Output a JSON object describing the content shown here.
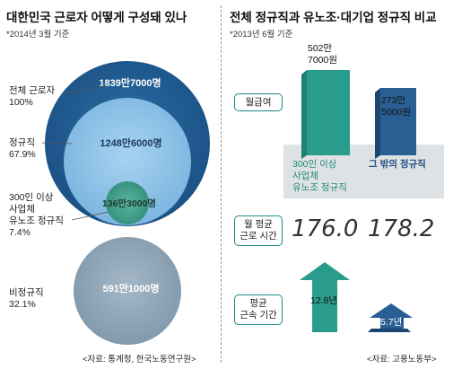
{
  "left": {
    "title": "대한민국 근로자 어떻게 구성돼 있나",
    "note": "*2014년 3월 기준",
    "source": "<자료: 통계청, 한국노동연구원>",
    "items": [
      {
        "label_lines": [
          "전체 근로자"
        ],
        "pct": "100%",
        "value_text": "1839만7000명"
      },
      {
        "label_lines": [
          "정규직"
        ],
        "pct": "67.9%",
        "value_text": "1248만6000명"
      },
      {
        "label_lines": [
          "300인 이상",
          "사업체",
          "유노조 정규직"
        ],
        "pct": "7.4%",
        "value_text": "136만3000명"
      },
      {
        "label_lines": [
          "비정규직"
        ],
        "pct": "32.1%",
        "value_text": "591만1000명"
      }
    ]
  },
  "right": {
    "title": "전체 정규직과 유노조·대기업 정규직 비교",
    "note": "*2013년 6월 기준",
    "source": "<자료: 고용노동부>",
    "metrics": [
      {
        "label_lines": [
          "월급여"
        ]
      },
      {
        "label_lines": [
          "월 평균",
          "근로 시간"
        ]
      },
      {
        "label_lines": [
          "평균",
          "근속 기간"
        ]
      }
    ],
    "groups": [
      {
        "label_lines": [
          "300인 이상",
          "사업체",
          "유노조 정규직"
        ]
      },
      {
        "label_lines": [
          "그 밖의 정규직"
        ]
      }
    ]
  },
  "chart_data": [
    {
      "type": "bubble",
      "title": "대한민국 근로자 어떻게 구성돼 있나",
      "subtitle": "*2014년 3월 기준",
      "unit": "명",
      "categories": [
        "전체 근로자",
        "정규직",
        "300인 이상 사업체 유노조 정규직",
        "비정규직"
      ],
      "values": [
        18397000,
        12486000,
        1363000,
        5911000
      ],
      "percent": [
        100,
        67.9,
        7.4,
        32.1
      ],
      "colors": [
        "#1f5f96",
        "#8cc2e6",
        "#3d9a86",
        "#8fa6b8"
      ]
    },
    {
      "type": "bar",
      "title": "월급여",
      "subtitle": "*2013년 6월 기준",
      "categories": [
        "300인 이상 사업체 유노조 정규직",
        "그 밖의 정규직"
      ],
      "values": [
        5027000,
        2735000
      ],
      "value_text": [
        "502만 7000원",
        "273만 5000원"
      ],
      "colors": [
        "#2a9c8c",
        "#2a5f94"
      ]
    },
    {
      "type": "table",
      "title": "월 평균 근로 시간",
      "categories": [
        "300인 이상 사업체 유노조 정규직",
        "그 밖의 정규직"
      ],
      "values": [
        176.0,
        178.2
      ],
      "value_text": [
        "176.0",
        "178.2"
      ]
    },
    {
      "type": "bar",
      "title": "평균 근속 기간",
      "categories": [
        "300인 이상 사업체 유노조 정규직",
        "그 밖의 정규직"
      ],
      "values": [
        12.8,
        5.7
      ],
      "value_text": [
        "12.8년",
        "5.7년"
      ],
      "colors": [
        "#2a9c8c",
        "#2a5f94"
      ]
    }
  ]
}
